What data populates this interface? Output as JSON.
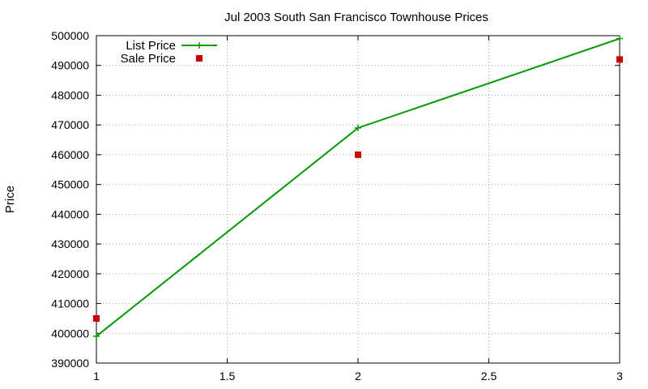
{
  "chart_data": {
    "type": "line",
    "title": "Jul 2003 South San Francisco Townhouse Prices",
    "xlabel": "",
    "ylabel": "Price",
    "xlim": [
      1,
      3
    ],
    "ylim": [
      390000,
      500000
    ],
    "xticks": [
      1,
      1.5,
      2,
      2.5,
      3
    ],
    "xtick_labels": [
      "1",
      "1.5",
      "2",
      "2.5",
      "3"
    ],
    "yticks": [
      390000,
      400000,
      410000,
      420000,
      430000,
      440000,
      450000,
      460000,
      470000,
      480000,
      490000,
      500000
    ],
    "ytick_labels": [
      "390000",
      "400000",
      "410000",
      "420000",
      "430000",
      "440000",
      "450000",
      "460000",
      "470000",
      "480000",
      "490000",
      "500000"
    ],
    "grid": true,
    "legend_position": "top-left",
    "series": [
      {
        "name": "List Price",
        "style": "lines+crosses",
        "color": "#009900",
        "x": [
          1,
          2,
          3
        ],
        "y": [
          399000,
          469000,
          499000
        ]
      },
      {
        "name": "Sale Price",
        "style": "squares",
        "color": "#cc0000",
        "x": [
          1,
          2,
          3
        ],
        "y": [
          405000,
          460000,
          492000
        ]
      }
    ]
  }
}
